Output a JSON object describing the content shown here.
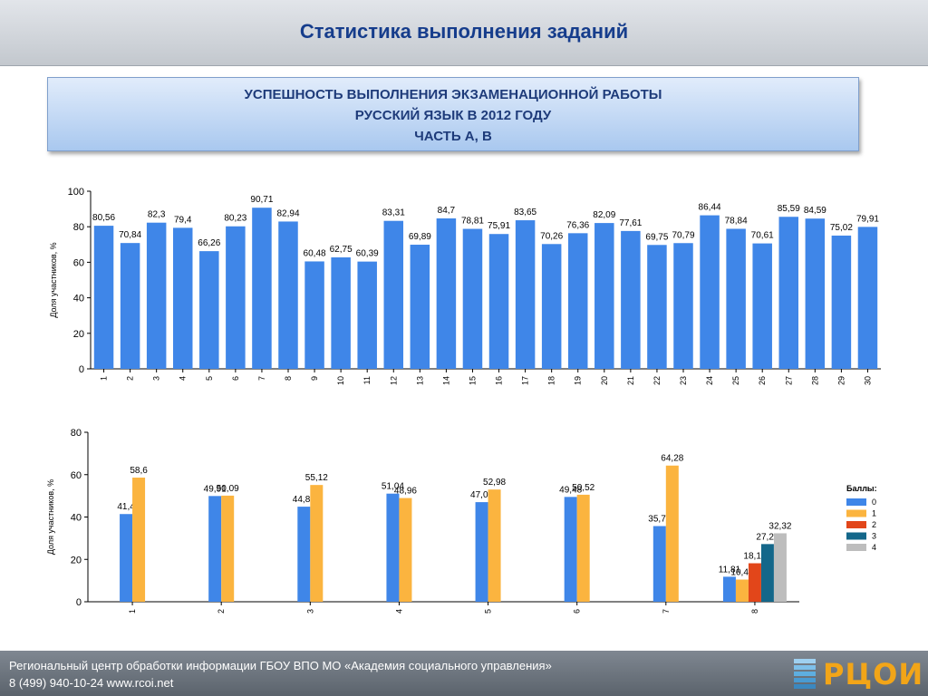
{
  "header": {
    "title": "Статистика выполнения заданий"
  },
  "banner": {
    "line1": "УСПЕШНОСТЬ ВЫПОЛНЕНИЯ ЭКЗАМЕНАЦИОННОЙ РАБОТЫ",
    "line2": "РУССКИЙ ЯЗЫК В 2012 ГОДУ",
    "line3": "ЧАСТЬ А, В"
  },
  "footer": {
    "line1": "Региональный центр обработки информации ГБОУ ВПО МО «Академия социального управления»",
    "line2": "8 (499) 940-10-24 www.rcoi.net",
    "logo_text": "РЦОИ"
  },
  "colors": {
    "bar_primary": "#3f86e8",
    "score_0": "#3f86e8",
    "score_1": "#fbb43f",
    "score_2": "#e2461a",
    "score_3": "#14678a",
    "score_4": "#bdbdbd"
  },
  "chart_data": [
    {
      "type": "bar",
      "ylabel": "Доля участников, %",
      "ylim": [
        0,
        100
      ],
      "yticks": [
        0,
        20,
        40,
        60,
        80,
        100
      ],
      "grid": false,
      "categories": [
        "1",
        "2",
        "3",
        "4",
        "5",
        "6",
        "7",
        "8",
        "9",
        "10",
        "11",
        "12",
        "13",
        "14",
        "15",
        "16",
        "17",
        "18",
        "19",
        "20",
        "21",
        "22",
        "23",
        "24",
        "25",
        "26",
        "27",
        "28",
        "29",
        "30"
      ],
      "values": [
        80.56,
        70.84,
        82.3,
        79.4,
        66.26,
        80.23,
        90.71,
        82.94,
        60.48,
        62.75,
        60.39,
        83.31,
        69.89,
        84.7,
        78.81,
        75.91,
        83.65,
        70.26,
        76.36,
        82.09,
        77.61,
        69.75,
        70.79,
        86.44,
        78.84,
        70.61,
        85.59,
        84.59,
        75.02,
        79.91
      ],
      "labels": [
        "80,56",
        "70,84",
        "82,3",
        "79,4",
        "66,26",
        "80,23",
        "90,71",
        "82,94",
        "60,48",
        "62,75",
        "60,39",
        "83,31",
        "69,89",
        "84,7",
        "78,81",
        "75,91",
        "83,65",
        "70,26",
        "76,36",
        "82,09",
        "77,61",
        "69,75",
        "70,79",
        "86,44",
        "78,84",
        "70,61",
        "85,59",
        "84,59",
        "75,02",
        "79,91"
      ]
    },
    {
      "type": "bar",
      "ylabel": "Доля участников, %",
      "ylim": [
        0,
        80
      ],
      "yticks": [
        0,
        20,
        40,
        60,
        80
      ],
      "grid": false,
      "legend_title": "Баллы:",
      "legend_position": "right",
      "categories": [
        "1",
        "2",
        "3",
        "4",
        "5",
        "6",
        "7",
        "8"
      ],
      "series": [
        {
          "name": "0",
          "values": [
            41.4,
            49.91,
            44.88,
            51.04,
            47.02,
            49.48,
            35.72,
            11.81
          ],
          "labels": [
            "41,4",
            "49,91",
            "44,88",
            "51,04",
            "47,02",
            "49,48",
            "35,72",
            "11,81"
          ]
        },
        {
          "name": "1",
          "values": [
            58.6,
            50.09,
            55.12,
            48.96,
            52.98,
            50.52,
            64.28,
            10.47
          ],
          "labels": [
            "58,6",
            "50,09",
            "55,12",
            "48,96",
            "52,98",
            "50,52",
            "64,28",
            "10,47"
          ]
        },
        {
          "name": "2",
          "values": [
            null,
            null,
            null,
            null,
            null,
            null,
            null,
            18.17
          ],
          "labels": [
            "",
            "",
            "",
            "",
            "",
            "",
            "",
            "18,17"
          ]
        },
        {
          "name": "3",
          "values": [
            null,
            null,
            null,
            null,
            null,
            null,
            null,
            27.23
          ],
          "labels": [
            "",
            "",
            "",
            "",
            "",
            "",
            "",
            "27,23"
          ]
        },
        {
          "name": "4",
          "values": [
            null,
            null,
            null,
            null,
            null,
            null,
            null,
            32.32
          ],
          "labels": [
            "",
            "",
            "",
            "",
            "",
            "",
            "",
            "32,32"
          ]
        }
      ]
    }
  ]
}
